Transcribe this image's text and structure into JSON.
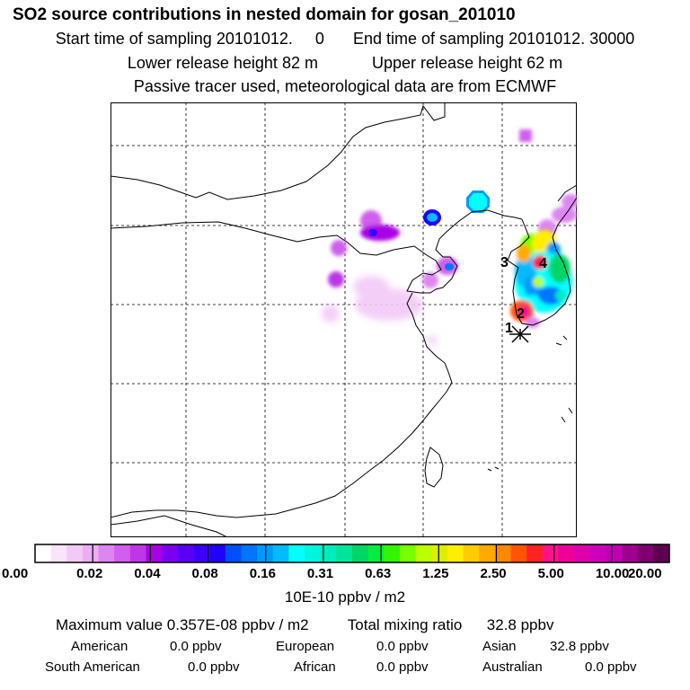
{
  "title": "SO2 source contributions in nested domain for gosan_201010",
  "sampling": {
    "start_label": "Start time of sampling",
    "start_value": "20101012.     0",
    "end_label": "End time of sampling",
    "end_value": "20101012. 30000"
  },
  "release": {
    "lower_label": "Lower release height",
    "lower_value": "82 m",
    "upper_label": "Upper release height",
    "upper_value": "62 m"
  },
  "note": "Passive tracer used, meteorological data are from ECMWF",
  "map": {
    "region": "East Asia nested domain",
    "region_labels": [
      "1",
      "2",
      "3",
      "4"
    ],
    "receptor_icon": "asterisk-marker-icon"
  },
  "colorbar": {
    "tick_labels": [
      "0.00",
      "0.02",
      "0.04",
      "0.08",
      "0.16",
      "0.31",
      "0.63",
      "1.25",
      "2.50",
      "5.00",
      "10.00",
      "20.00"
    ],
    "colors": [
      "#ffffff",
      "#f9e4fb",
      "#f2c9f7",
      "#ebaef3",
      "#dd86ef",
      "#cf5fec",
      "#bd36e8",
      "#aa00e6",
      "#7b00f0",
      "#5a00f5",
      "#3a00fa",
      "#2000ff",
      "#0050ff",
      "#0075ff",
      "#0099ff",
      "#00bbff",
      "#00ffff",
      "#00f5dd",
      "#00ecbb",
      "#00e599",
      "#00d566",
      "#00ee44",
      "#33f500",
      "#77ff00",
      "#bbff00",
      "#ddee00",
      "#ffee00",
      "#ffcc00",
      "#ffaa00",
      "#ff8800",
      "#ff5500",
      "#ff2222",
      "#ff1188",
      "#ee0099",
      "#dd00aa",
      "#cc00bb",
      "#c000b0",
      "#a00090",
      "#800070",
      "#600050"
    ],
    "unit": "10E-10 ppbv / m2"
  },
  "stats": {
    "max_label": "Maximum value",
    "max_value": "0.357E-08 ppbv / m2",
    "total_label": "Total mixing ratio",
    "total_value": "32.8 ppbv",
    "regions": [
      {
        "name": "American",
        "value": "0.0 ppbv"
      },
      {
        "name": "European",
        "value": "0.0 ppbv"
      },
      {
        "name": "Asian",
        "value": "32.8 ppbv"
      },
      {
        "name": "South American",
        "value": "0.0 ppbv"
      },
      {
        "name": "African",
        "value": "0.0 ppbv"
      },
      {
        "name": "Australian",
        "value": "0.0 ppbv"
      }
    ]
  }
}
